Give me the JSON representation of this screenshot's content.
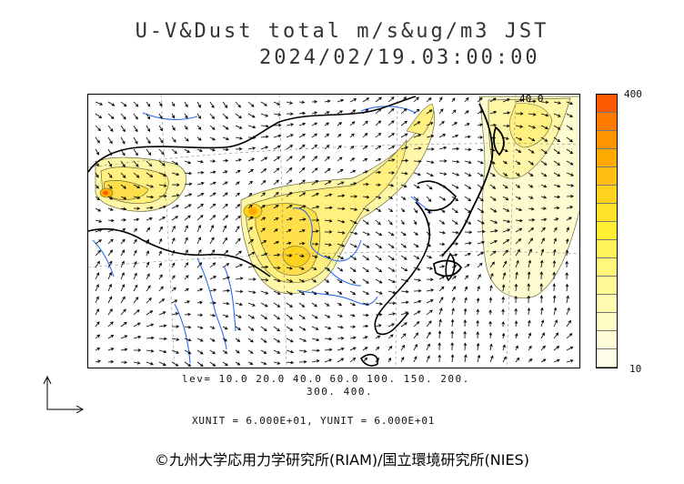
{
  "header": {
    "title_line1": "U-V&Dust total m/s&ug/m3 JST",
    "title_line2": "2024/02/19.03:00:00"
  },
  "map": {
    "contour_label": "40.0",
    "land_color": "#ffffff",
    "river_color": "#2a6cf0",
    "coast_color": "#000000",
    "vector_color": "#000000"
  },
  "colorbar": {
    "max_label": "400",
    "min_label": "10",
    "colors": [
      "#ff5a00",
      "#ff7a00",
      "#ff9400",
      "#ffaa00",
      "#ffbe14",
      "#ffd21e",
      "#ffe228",
      "#fff032",
      "#fff55a",
      "#fff87a",
      "#fffa96",
      "#fffbb0",
      "#fffcc6",
      "#fffdd8",
      "#fffee8"
    ]
  },
  "footer": {
    "levels_line1": "lev= 10.0 20.0 40.0 60.0 100. 150. 200.",
    "levels_line2": "300. 400.",
    "units_line": "XUNIT = 6.000E+01, YUNIT = 6.000E+01",
    "credit": "©九州大学応用力学研究所(RIAM)/国立環境研究所(NIES)"
  }
}
